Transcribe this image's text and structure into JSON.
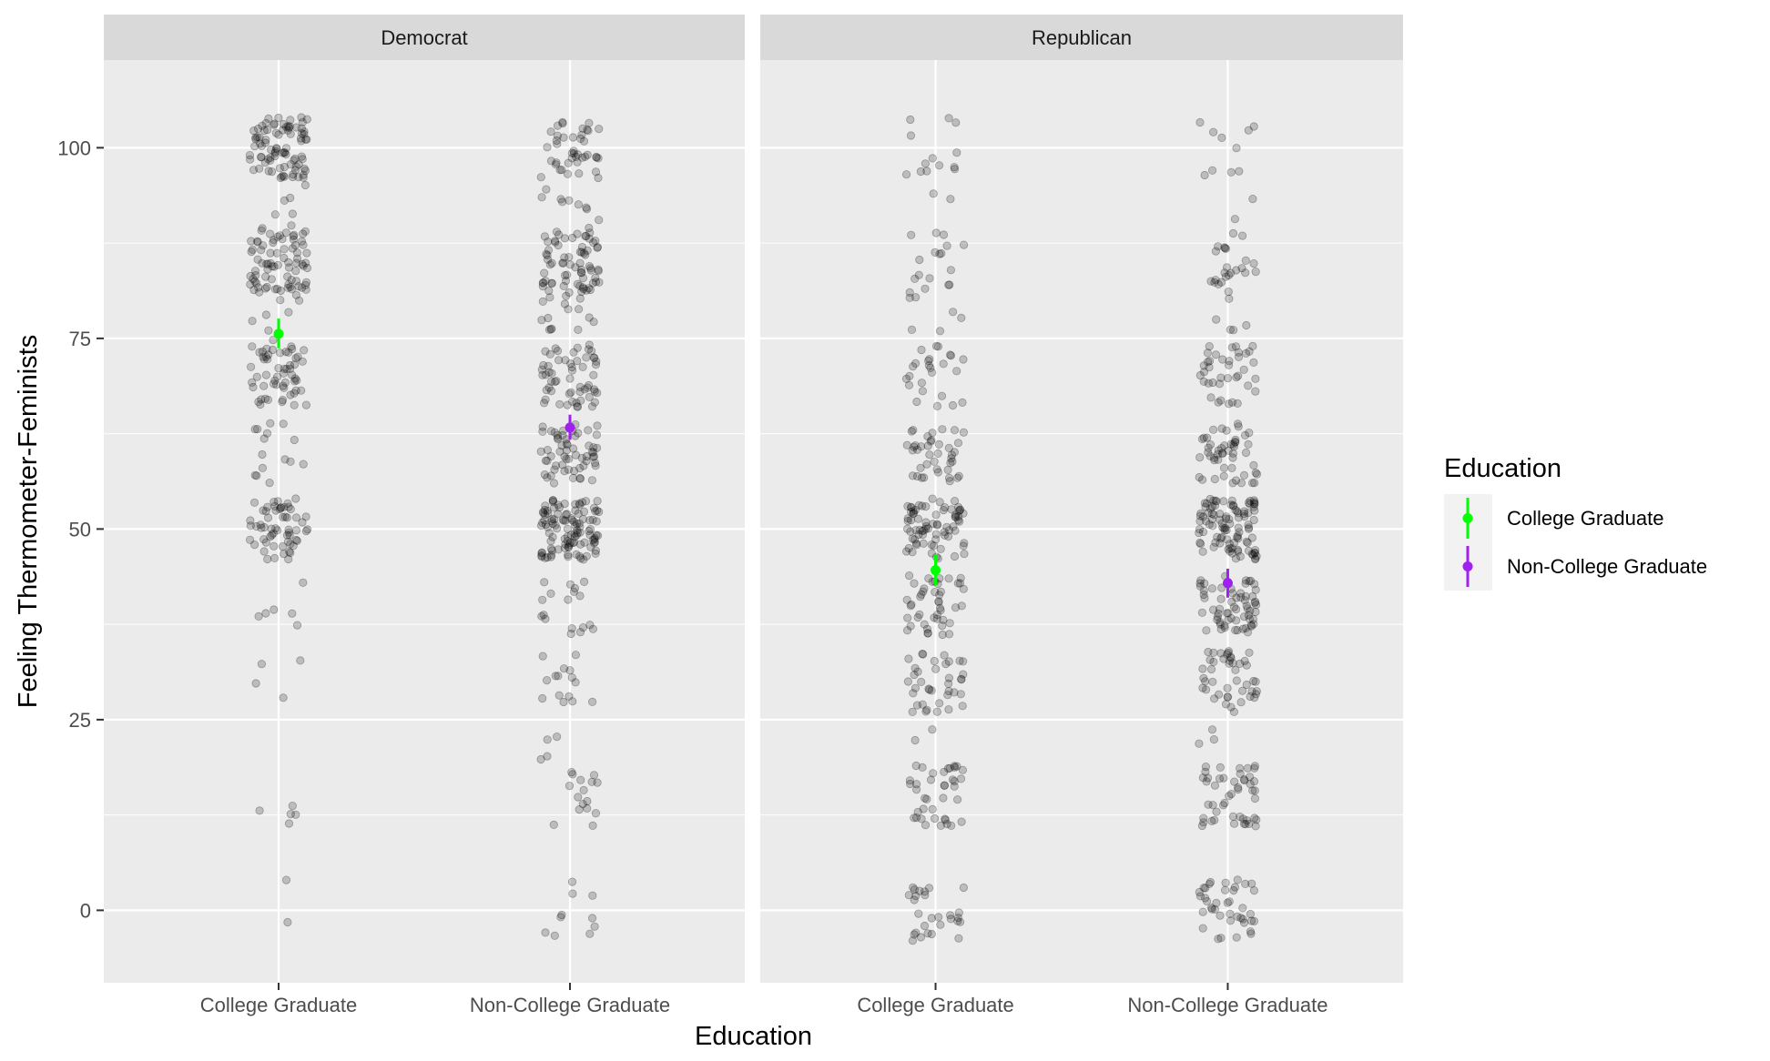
{
  "chart_data": {
    "type": "scatter",
    "title": "",
    "xlabel": "Education",
    "ylabel": "Feeling Thermometer-Feminists",
    "ylim": [
      -9.5,
      111.5
    ],
    "yticks": [
      0,
      25,
      50,
      75,
      100
    ],
    "ytick_labels": [
      "0",
      "25",
      "50",
      "75",
      "100"
    ],
    "categories": [
      "College Graduate",
      "Non-College Graduate"
    ],
    "facets": [
      "Democrat",
      "Republican"
    ],
    "grid": true,
    "legend": {
      "title": "Education",
      "placement": "right",
      "items": [
        {
          "label": "College Graduate",
          "color": "#00ff00"
        },
        {
          "label": "Non-College Graduate",
          "color": "#a020f0"
        }
      ]
    },
    "point_color": "#000000",
    "point_alpha": 0.2,
    "jitter_width": 0.1,
    "jitter_height": 4,
    "summary": [
      {
        "facet": "Democrat",
        "category": "College Graduate",
        "mean": 75.6,
        "ci_low": 73.7,
        "ci_high": 77.6,
        "color": "#00ff00"
      },
      {
        "facet": "Democrat",
        "category": "Non-College Graduate",
        "mean": 63.3,
        "ci_low": 61.7,
        "ci_high": 65.0,
        "color": "#a020f0"
      },
      {
        "facet": "Republican",
        "category": "College Graduate",
        "mean": 44.6,
        "ci_low": 42.6,
        "ci_high": 46.6,
        "color": "#00ff00"
      },
      {
        "facet": "Republican",
        "category": "Non-College Graduate",
        "mean": 42.9,
        "ci_low": 41.0,
        "ci_high": 44.8,
        "color": "#a020f0"
      }
    ],
    "value_distributions": [
      {
        "facet": "Democrat",
        "category": "College Graduate",
        "levels": [
          [
            0,
            2
          ],
          [
            10,
            3
          ],
          [
            15,
            2
          ],
          [
            30,
            4
          ],
          [
            40,
            6
          ],
          [
            50,
            60
          ],
          [
            60,
            15
          ],
          [
            70,
            55
          ],
          [
            75,
            3
          ],
          [
            80,
            12
          ],
          [
            85,
            65
          ],
          [
            90,
            10
          ],
          [
            95,
            4
          ],
          [
            100,
            85
          ]
        ]
      },
      {
        "facet": "Democrat",
        "category": "Non-College Graduate",
        "levels": [
          [
            0,
            10
          ],
          [
            15,
            14
          ],
          [
            20,
            6
          ],
          [
            30,
            15
          ],
          [
            40,
            18
          ],
          [
            50,
            110
          ],
          [
            60,
            60
          ],
          [
            70,
            55
          ],
          [
            75,
            4
          ],
          [
            80,
            20
          ],
          [
            85,
            60
          ],
          [
            90,
            12
          ],
          [
            95,
            5
          ],
          [
            100,
            40
          ]
        ]
      },
      {
        "facet": "Republican",
        "category": "College Graduate",
        "levels": [
          [
            0,
            28
          ],
          [
            15,
            35
          ],
          [
            20,
            6
          ],
          [
            30,
            38
          ],
          [
            40,
            45
          ],
          [
            50,
            75
          ],
          [
            60,
            40
          ],
          [
            70,
            25
          ],
          [
            75,
            3
          ],
          [
            80,
            8
          ],
          [
            85,
            10
          ],
          [
            90,
            3
          ],
          [
            95,
            2
          ],
          [
            100,
            12
          ]
        ]
      },
      {
        "facet": "Republican",
        "category": "Non-College Graduate",
        "levels": [
          [
            0,
            40
          ],
          [
            15,
            45
          ],
          [
            20,
            6
          ],
          [
            30,
            45
          ],
          [
            40,
            65
          ],
          [
            50,
            100
          ],
          [
            60,
            50
          ],
          [
            70,
            35
          ],
          [
            75,
            3
          ],
          [
            80,
            10
          ],
          [
            85,
            18
          ],
          [
            90,
            3
          ],
          [
            95,
            2
          ],
          [
            100,
            8
          ]
        ]
      }
    ]
  }
}
